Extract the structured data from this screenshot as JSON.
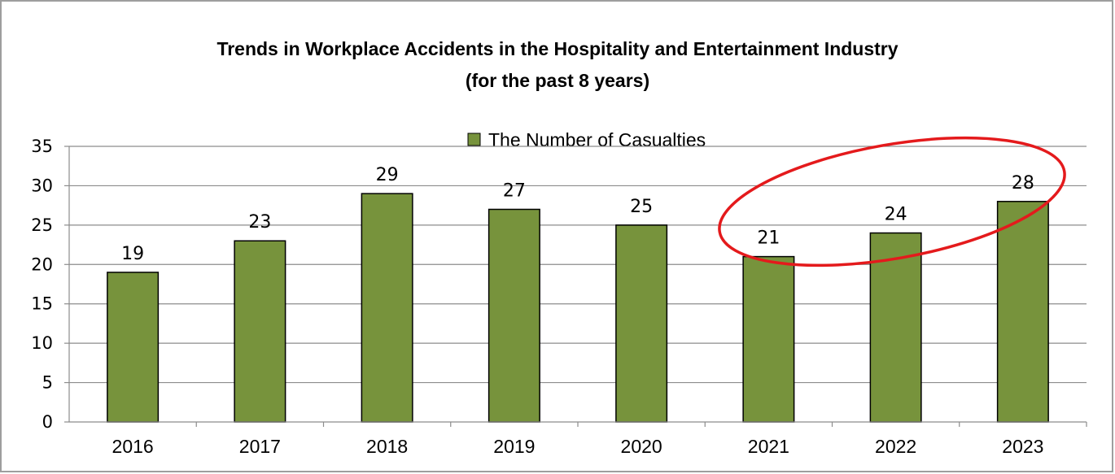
{
  "chart_data": {
    "type": "bar",
    "title": "Trends in Workplace Accidents in the Hospitality and Entertainment Industry",
    "subtitle": "(for the past 8 years)",
    "categories": [
      "2016",
      "2017",
      "2018",
      "2019",
      "2020",
      "2021",
      "2022",
      "2023"
    ],
    "series": [
      {
        "name": "The Number of Casualties",
        "values": [
          19,
          23,
          29,
          27,
          25,
          21,
          24,
          28
        ],
        "color": "#77933c"
      }
    ],
    "xlabel": "",
    "ylabel": "",
    "ylim": [
      0,
      35
    ],
    "yticks": [
      "0",
      "5",
      "10",
      "15",
      "20",
      "25",
      "30",
      "35"
    ],
    "grid": true,
    "legend": "top-center",
    "data_labels": true,
    "annotation": {
      "shape": "ellipse",
      "color": "#e41a1c",
      "highlights": [
        "2021",
        "2022",
        "2023"
      ]
    }
  }
}
